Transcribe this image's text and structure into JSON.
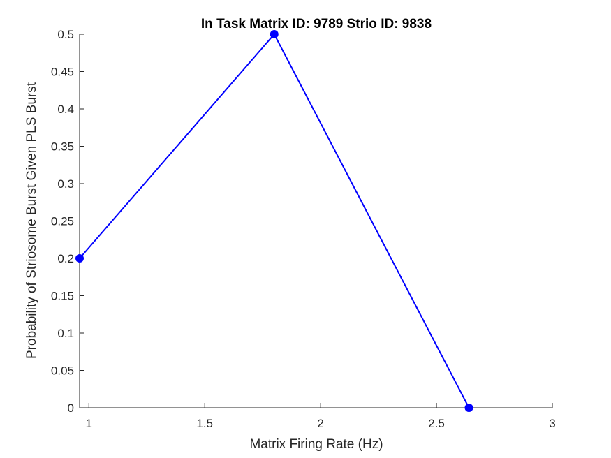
{
  "chart_data": {
    "type": "line",
    "title": "In Task Matrix ID: 9789 Strio ID: 9838",
    "xlabel": "Matrix Firing Rate (Hz)",
    "ylabel": "Probability of Striosome Burst Given PLS Burst",
    "xlim": [
      0.96,
      3
    ],
    "ylim": [
      0,
      0.5
    ],
    "x_ticks": [
      1,
      1.5,
      2,
      2.5,
      3
    ],
    "x_tick_labels": [
      "1",
      "1.5",
      "2",
      "2.5",
      "3"
    ],
    "y_ticks": [
      0,
      0.05,
      0.1,
      0.15,
      0.2,
      0.25,
      0.3,
      0.35,
      0.4,
      0.45,
      0.5
    ],
    "y_tick_labels": [
      "0",
      "0.05",
      "0.1",
      "0.15",
      "0.2",
      "0.25",
      "0.3",
      "0.35",
      "0.4",
      "0.45",
      "0.5"
    ],
    "grid": false,
    "series": [
      {
        "x": [
          0.96,
          1.8,
          2.64
        ],
        "y": [
          0.2,
          0.5,
          0
        ],
        "color": "#0000ff",
        "marker": "circle"
      }
    ]
  }
}
